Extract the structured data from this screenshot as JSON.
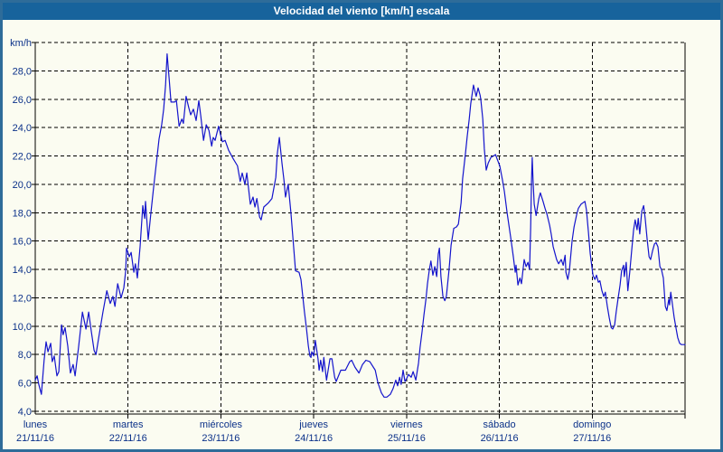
{
  "window": {
    "title": "Velocidad del viento [km/h] escala"
  },
  "colors": {
    "titlebar_bg": "#17639c",
    "titlebar_text": "#ffffff",
    "window_border": "#2e6c99",
    "background": "#fbfcf1",
    "line": "#1414cc",
    "grid": "#000000",
    "axis_line": "#000000",
    "axis_text": "#0b3189"
  },
  "chart_data": {
    "type": "line",
    "title": "Velocidad del viento [km/h] escala",
    "ylabel": "km/h",
    "xlabel": "",
    "grid": "dashed",
    "legend": "none",
    "ylim": [
      4,
      30
    ],
    "y_axis": {
      "unit_label": "km/h",
      "min": 4,
      "max": 30,
      "tick_step": 2,
      "tick_labels": [
        "28,0",
        "26,0",
        "24,0",
        "22,0",
        "20,0",
        "18,0",
        "16,0",
        "14,0",
        "12,0",
        "10,0",
        "8,0",
        "6,0",
        "4,0"
      ]
    },
    "x_axis": {
      "unit": "hours_from_monday_00h",
      "range_hours": [
        0,
        168
      ],
      "day_span_hours": 24,
      "days": [
        {
          "name": "lunes",
          "date": "21/11/16"
        },
        {
          "name": "martes",
          "date": "22/11/16"
        },
        {
          "name": "miércoles",
          "date": "23/11/16"
        },
        {
          "name": "jueves",
          "date": "24/11/16"
        },
        {
          "name": "viernes",
          "date": "25/11/16"
        },
        {
          "name": "sábado",
          "date": "26/11/16"
        },
        {
          "name": "domingo",
          "date": "27/11/16"
        }
      ]
    },
    "series": [
      {
        "name": "Velocidad del viento",
        "points": [
          [
            0,
            6.2
          ],
          [
            0.5,
            6.5
          ],
          [
            0.9,
            5.9
          ],
          [
            1.6,
            5.2
          ],
          [
            2.3,
            7.6
          ],
          [
            2.8,
            8.9
          ],
          [
            3.3,
            8.2
          ],
          [
            4,
            8.8
          ],
          [
            4.4,
            7.5
          ],
          [
            4.9,
            7.9
          ],
          [
            5.6,
            6.5
          ],
          [
            6.1,
            6.8
          ],
          [
            6.8,
            10.1
          ],
          [
            7.2,
            9.4
          ],
          [
            7.7,
            9.9
          ],
          [
            8.4,
            8.6
          ],
          [
            9.1,
            6.7
          ],
          [
            9.8,
            7.3
          ],
          [
            10.3,
            6.5
          ],
          [
            11.2,
            8.5
          ],
          [
            12.2,
            11
          ],
          [
            13.1,
            9.8
          ],
          [
            13.8,
            11
          ],
          [
            14.5,
            9.6
          ],
          [
            15.2,
            8.3
          ],
          [
            15.7,
            8
          ],
          [
            16.6,
            9.5
          ],
          [
            17.5,
            11
          ],
          [
            18.5,
            12.5
          ],
          [
            19.4,
            11.6
          ],
          [
            20.1,
            12.1
          ],
          [
            20.6,
            11.4
          ],
          [
            21.3,
            13
          ],
          [
            22.2,
            12
          ],
          [
            22.9,
            12.7
          ],
          [
            23.4,
            13.9
          ],
          [
            23.6,
            15.5
          ],
          [
            24.3,
            14.9
          ],
          [
            24.8,
            15.2
          ],
          [
            25.5,
            13.8
          ],
          [
            25.9,
            14.4
          ],
          [
            26.4,
            13.4
          ],
          [
            27.1,
            15.6
          ],
          [
            27.8,
            18.5
          ],
          [
            28.3,
            17.6
          ],
          [
            28.5,
            18.8
          ],
          [
            29.2,
            16.1
          ],
          [
            29.9,
            18
          ],
          [
            30.6,
            19.8
          ],
          [
            31.3,
            21.5
          ],
          [
            32,
            23.2
          ],
          [
            32.7,
            24.2
          ],
          [
            33.2,
            25.3
          ],
          [
            33.7,
            27
          ],
          [
            34.1,
            29.2
          ],
          [
            34.6,
            27.5
          ],
          [
            35.1,
            25.8
          ],
          [
            36,
            25.8
          ],
          [
            36.5,
            25.9
          ],
          [
            37.2,
            24.1
          ],
          [
            37.9,
            24.6
          ],
          [
            38.3,
            24.3
          ],
          [
            39,
            26.2
          ],
          [
            39.7,
            25.4
          ],
          [
            40.2,
            24.9
          ],
          [
            40.9,
            25.3
          ],
          [
            41.6,
            24.5
          ],
          [
            42.3,
            25.9
          ],
          [
            42.8,
            24.8
          ],
          [
            43.5,
            23.1
          ],
          [
            44.2,
            24.2
          ],
          [
            44.9,
            23.8
          ],
          [
            45.6,
            22.7
          ],
          [
            46,
            23.3
          ],
          [
            46.5,
            23.1
          ],
          [
            47.4,
            24.1
          ],
          [
            47.9,
            23.5
          ],
          [
            48.4,
            23
          ],
          [
            49.1,
            23.1
          ],
          [
            50,
            22.4
          ],
          [
            51.2,
            21.8
          ],
          [
            52.3,
            21.3
          ],
          [
            53,
            20.2
          ],
          [
            53.5,
            20.8
          ],
          [
            54.2,
            20
          ],
          [
            54.7,
            20.8
          ],
          [
            55.6,
            18.6
          ],
          [
            56.3,
            19.1
          ],
          [
            56.8,
            18.4
          ],
          [
            57.3,
            19
          ],
          [
            58,
            17.7
          ],
          [
            58.4,
            17.5
          ],
          [
            59.1,
            18.4
          ],
          [
            60.3,
            18.7
          ],
          [
            61.2,
            19
          ],
          [
            62.2,
            20.5
          ],
          [
            62.6,
            22.2
          ],
          [
            63.1,
            23.3
          ],
          [
            63.8,
            21.5
          ],
          [
            64.3,
            20.3
          ],
          [
            64.7,
            19.1
          ],
          [
            65.4,
            20
          ],
          [
            66.1,
            18
          ],
          [
            66.8,
            15.6
          ],
          [
            67.3,
            13.9
          ],
          [
            68.2,
            13.8
          ],
          [
            68.7,
            13.3
          ],
          [
            69.2,
            12
          ],
          [
            69.6,
            11
          ],
          [
            70.1,
            9.9
          ],
          [
            70.6,
            8.6
          ],
          [
            71,
            7.9
          ],
          [
            71.3,
            7.8
          ],
          [
            71.5,
            8.2
          ],
          [
            72,
            7.9
          ],
          [
            72.4,
            9
          ],
          [
            73.1,
            7.7
          ],
          [
            73.4,
            6.9
          ],
          [
            73.8,
            7.6
          ],
          [
            74.3,
            6.8
          ],
          [
            74.6,
            7.8
          ],
          [
            75.3,
            6.2
          ],
          [
            76.2,
            7.7
          ],
          [
            76.7,
            7.7
          ],
          [
            77.4,
            6.4
          ],
          [
            77.8,
            6.1
          ],
          [
            79,
            6.9
          ],
          [
            80.2,
            6.9
          ],
          [
            81.3,
            7.5
          ],
          [
            81.8,
            7.6
          ],
          [
            82.7,
            7.1
          ],
          [
            83.7,
            6.7
          ],
          [
            84.6,
            7.3
          ],
          [
            85.5,
            7.6
          ],
          [
            86.5,
            7.5
          ],
          [
            87.9,
            6.9
          ],
          [
            88.6,
            6
          ],
          [
            89.5,
            5.3
          ],
          [
            90.2,
            5
          ],
          [
            90.9,
            5
          ],
          [
            91.8,
            5.2
          ],
          [
            92.5,
            5.6
          ],
          [
            93.2,
            6.2
          ],
          [
            93.7,
            5.8
          ],
          [
            94.2,
            6.4
          ],
          [
            94.6,
            5.9
          ],
          [
            95.1,
            6.9
          ],
          [
            95.6,
            6.1
          ],
          [
            96,
            6.3
          ],
          [
            96.5,
            6.6
          ],
          [
            97.2,
            6.4
          ],
          [
            97.7,
            6.8
          ],
          [
            98.4,
            6.2
          ],
          [
            99.1,
            7.4
          ],
          [
            99.5,
            8.5
          ],
          [
            100,
            9.6
          ],
          [
            100.5,
            10.8
          ],
          [
            101,
            11.9
          ],
          [
            101.4,
            13
          ],
          [
            101.9,
            14
          ],
          [
            102.3,
            14.6
          ],
          [
            102.8,
            13.6
          ],
          [
            103.3,
            14.2
          ],
          [
            103.8,
            13.5
          ],
          [
            104.2,
            15.1
          ],
          [
            104.5,
            15.5
          ],
          [
            104.9,
            13.5
          ],
          [
            105.4,
            12.1
          ],
          [
            105.9,
            11.8
          ],
          [
            106.3,
            12.1
          ],
          [
            107,
            14
          ],
          [
            107.5,
            15.7
          ],
          [
            108.2,
            16.9
          ],
          [
            108.9,
            17
          ],
          [
            109.4,
            17.2
          ],
          [
            110.1,
            18.7
          ],
          [
            110.5,
            20.4
          ],
          [
            111.2,
            22.1
          ],
          [
            111.7,
            23.4
          ],
          [
            112.2,
            24.6
          ],
          [
            112.6,
            25.7
          ],
          [
            113.1,
            26.6
          ],
          [
            113.3,
            27
          ],
          [
            114,
            26.2
          ],
          [
            114.5,
            26.8
          ],
          [
            115,
            26.3
          ],
          [
            115.2,
            26
          ],
          [
            115.7,
            24.6
          ],
          [
            116.1,
            22.5
          ],
          [
            116.6,
            21
          ],
          [
            117.1,
            21.5
          ],
          [
            117.8,
            21.9
          ],
          [
            118.5,
            22
          ],
          [
            119,
            22.1
          ],
          [
            119.4,
            21.8
          ],
          [
            120.1,
            21.3
          ],
          [
            120.8,
            20.3
          ],
          [
            121.3,
            19.5
          ],
          [
            122,
            18
          ],
          [
            122.9,
            16.3
          ],
          [
            123.6,
            14.9
          ],
          [
            124.1,
            13.8
          ],
          [
            124.3,
            14.3
          ],
          [
            124.8,
            12.9
          ],
          [
            125.3,
            13.4
          ],
          [
            125.7,
            13
          ],
          [
            126.4,
            14.7
          ],
          [
            126.9,
            14.2
          ],
          [
            127.4,
            14.5
          ],
          [
            127.8,
            14
          ],
          [
            128.1,
            17
          ],
          [
            128.3,
            20.2
          ],
          [
            128.5,
            21.9
          ],
          [
            128.7,
            20.3
          ],
          [
            129,
            18.6
          ],
          [
            129.5,
            17.8
          ],
          [
            130.2,
            19
          ],
          [
            130.6,
            19.4
          ],
          [
            131.3,
            18.8
          ],
          [
            131.8,
            18.3
          ],
          [
            132.3,
            17.9
          ],
          [
            133,
            17.1
          ],
          [
            133.4,
            16.5
          ],
          [
            133.9,
            15.6
          ],
          [
            134.4,
            15.1
          ],
          [
            134.8,
            14.7
          ],
          [
            135.3,
            14.4
          ],
          [
            136,
            14.7
          ],
          [
            136.5,
            14.3
          ],
          [
            137,
            15
          ],
          [
            137.2,
            13.8
          ],
          [
            137.7,
            13.3
          ],
          [
            138.1,
            13.9
          ],
          [
            138.8,
            16
          ],
          [
            139.3,
            17
          ],
          [
            140,
            17.9
          ],
          [
            140.4,
            18.3
          ],
          [
            141.1,
            18.6
          ],
          [
            142.1,
            18.8
          ],
          [
            142.5,
            18.2
          ],
          [
            143,
            16.7
          ],
          [
            143.5,
            15.1
          ],
          [
            144.2,
            13.6
          ],
          [
            144.7,
            13.3
          ],
          [
            145.1,
            13.6
          ],
          [
            145.6,
            13.1
          ],
          [
            146,
            13.2
          ],
          [
            146.5,
            12.5
          ],
          [
            147,
            12.1
          ],
          [
            147.4,
            12.4
          ],
          [
            147.9,
            11.4
          ],
          [
            148.4,
            10.6
          ],
          [
            148.9,
            9.9
          ],
          [
            149.3,
            9.8
          ],
          [
            149.8,
            10.1
          ],
          [
            150.2,
            11
          ],
          [
            150.7,
            12
          ],
          [
            151.2,
            12.9
          ],
          [
            151.6,
            13.9
          ],
          [
            152.1,
            14.3
          ],
          [
            152.3,
            13.5
          ],
          [
            152.8,
            14.5
          ],
          [
            153.2,
            12.5
          ],
          [
            153.7,
            13.8
          ],
          [
            154.2,
            15.3
          ],
          [
            154.7,
            16.8
          ],
          [
            155.1,
            17.5
          ],
          [
            155.6,
            16.8
          ],
          [
            155.9,
            17.6
          ],
          [
            156.3,
            16.5
          ],
          [
            156.8,
            18.1
          ],
          [
            157.3,
            18.5
          ],
          [
            157.7,
            17.6
          ],
          [
            158.2,
            16.1
          ],
          [
            158.7,
            14.9
          ],
          [
            159.1,
            14.7
          ],
          [
            159.6,
            15.3
          ],
          [
            160.1,
            15.8
          ],
          [
            160.5,
            15.9
          ],
          [
            161,
            15.6
          ],
          [
            161.5,
            14.2
          ],
          [
            161.9,
            14
          ],
          [
            162.4,
            13.4
          ],
          [
            162.9,
            11.4
          ],
          [
            163.3,
            11.1
          ],
          [
            163.8,
            11.9
          ],
          [
            164,
            11.5
          ],
          [
            164.3,
            12.4
          ],
          [
            164.7,
            11.6
          ],
          [
            165.2,
            10.6
          ],
          [
            165.7,
            9.8
          ],
          [
            166.1,
            9.2
          ],
          [
            166.6,
            8.8
          ],
          [
            167.1,
            8.7
          ],
          [
            167.5,
            8.7
          ],
          [
            168,
            8.7
          ]
        ]
      }
    ]
  }
}
